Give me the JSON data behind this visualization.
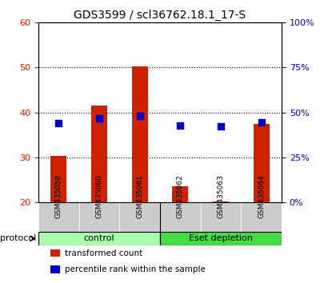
{
  "title": "GDS3599 / scl36762.18.1_17-S",
  "samples": [
    "GSM435059",
    "GSM435060",
    "GSM435061",
    "GSM435062",
    "GSM435063",
    "GSM435064"
  ],
  "bar_values": [
    30.3,
    41.5,
    50.2,
    23.5,
    20.2,
    37.5
  ],
  "scatter_values": [
    44.0,
    46.5,
    48.0,
    42.5,
    42.0,
    44.5
  ],
  "bar_color": "#cc2200",
  "scatter_color": "#0000cc",
  "ylim_left": [
    20,
    60
  ],
  "ylim_right": [
    0,
    100
  ],
  "yticks_left": [
    20,
    30,
    40,
    50,
    60
  ],
  "yticks_right": [
    0,
    25,
    50,
    75,
    100
  ],
  "ytick_labels_right": [
    "0%",
    "25%",
    "50%",
    "75%",
    "100%"
  ],
  "grid_values": [
    30,
    40,
    50
  ],
  "protocol_labels": [
    "control",
    "Eset depletion"
  ],
  "protocol_groups": [
    3,
    3
  ],
  "protocol_colors": [
    "#aaffaa",
    "#44dd44"
  ],
  "group_border_color": "#000000",
  "xlabel_area_color": "#cccccc",
  "legend_items": [
    "transformed count",
    "percentile rank within the sample"
  ],
  "legend_colors": [
    "#cc2200",
    "#0000cc"
  ],
  "bar_bottom": 20,
  "protocol_label": "protocol"
}
